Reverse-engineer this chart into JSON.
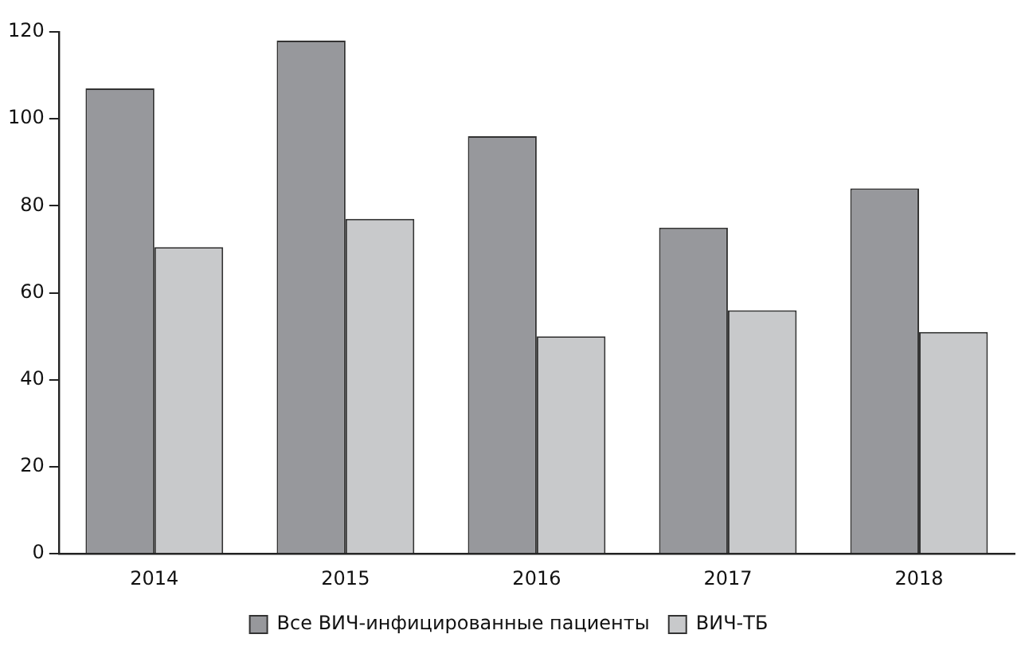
{
  "chart_data": {
    "type": "bar",
    "categories": [
      "2014",
      "2015",
      "2016",
      "2017",
      "2018"
    ],
    "series": [
      {
        "name": "Все ВИЧ-инфицированные пациенты",
        "color": "#97989c",
        "values": [
          107,
          118,
          96,
          75,
          84
        ]
      },
      {
        "name": "ВИЧ-ТБ",
        "color": "#c8c9cb",
        "values": [
          70.5,
          77,
          50,
          56,
          51
        ]
      }
    ],
    "ylim": [
      0,
      120
    ],
    "yticks": [
      0,
      20,
      40,
      60,
      80,
      100,
      120
    ],
    "grid": false,
    "legend": "bottom"
  }
}
